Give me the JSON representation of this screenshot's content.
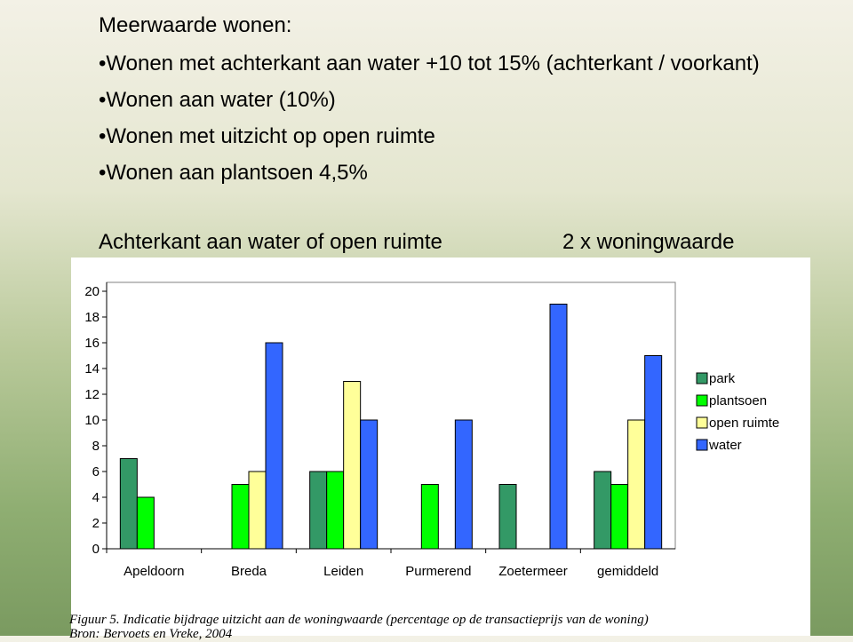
{
  "slide": {
    "title": "Meerwaarde wonen:",
    "bullets": [
      "Wonen met achterkant aan water +10 tot 15% (achterkant / voorkant)",
      "Wonen aan water (10%)",
      "Wonen met uitzicht op open ruimte",
      "Wonen aan plantsoen 4,5%"
    ],
    "note_left": "Achterkant aan water of open ruimte",
    "note_right": "2 x woningwaarde",
    "caption": "Figuur 5. Indicatie bijdrage uitzicht aan de woningwaarde (percentage op de transactieprijs van de woning)",
    "source": "Bron: Bervoets en Vreke, 2004"
  },
  "chart_data": {
    "type": "bar",
    "categories": [
      "Apeldoorn",
      "Breda",
      "Leiden",
      "Purmerend",
      "Zoetermeer",
      "gemiddeld"
    ],
    "series": [
      {
        "name": "park",
        "color": "#339966",
        "values": [
          7,
          null,
          6,
          null,
          5,
          6
        ]
      },
      {
        "name": "plantsoen",
        "color": "#00ff00",
        "values": [
          4,
          5,
          6,
          5,
          null,
          5
        ]
      },
      {
        "name": "open ruimte",
        "color": "#ffff99",
        "values": [
          null,
          6,
          13,
          null,
          null,
          10
        ]
      },
      {
        "name": "water",
        "color": "#3366ff",
        "values": [
          null,
          16,
          10,
          10,
          19,
          15
        ]
      }
    ],
    "ylim": [
      0,
      20
    ],
    "yticks": [
      0,
      2,
      4,
      6,
      8,
      10,
      12,
      14,
      16,
      18,
      20
    ],
    "grid": false,
    "legend": "right"
  }
}
